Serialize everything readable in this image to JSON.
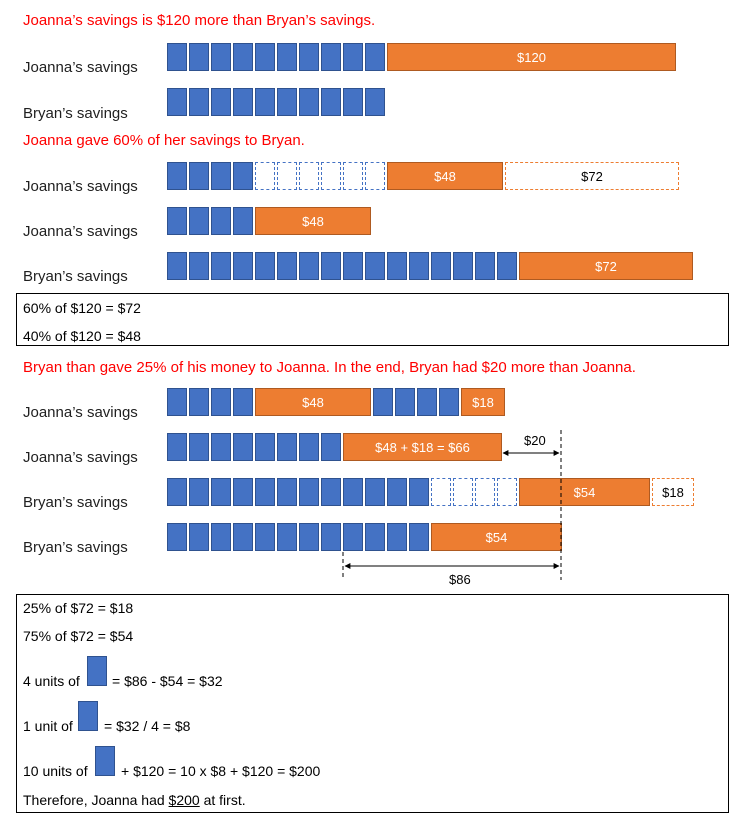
{
  "colors": {
    "unit": "#4472c4",
    "orange": "#ed7d31",
    "heading": "#ff0000"
  },
  "s1": {
    "heading": "Joanna’s savings is $120 more than Bryan’s savings.",
    "row_joanna": "Joanna’s savings",
    "row_bryan": "Bryan’s savings",
    "extra_value": "$120"
  },
  "s2": {
    "heading": "Joanna gave 60% of her savings to Bryan.",
    "row1_label": "Joanna’s savings",
    "row1_given": "$48",
    "row1_dashed": "$72",
    "row2_label": "Joanna’s savings",
    "row2_kept": "$48",
    "row3_label": "Bryan’s savings",
    "row3_received": "$72",
    "box_line1": "60% of $120 = $72",
    "box_line2": "40% of $120 = $48"
  },
  "s3": {
    "heading": "Bryan than gave 25% of his money to Joanna. In the end, Bryan had $20 more than Joanna.",
    "row1_label": "Joanna’s savings",
    "row1_a": "$48",
    "row1_b": "$18",
    "row2_label": "Joanna’s savings",
    "row2_sum": "$48 + $18 = $66",
    "diff_20": "$20",
    "row3_label": "Bryan’s savings",
    "row3_kept": "$54",
    "row3_given": "$18",
    "row4_label": "Bryan’s savings",
    "row4_value": "$54",
    "diff_86": "$86"
  },
  "solution": {
    "line1": "25% of $72 = $18",
    "line2": "75% of $72 = $54",
    "line3_pre": "4 units of",
    "line3_post": "= $86 - $54 = $32",
    "line4_pre": "1 unit of",
    "line4_post": "= $32 / 4 = $8",
    "line5_pre": "10 units of",
    "line5_post": "+ $120 = 10 x $8 + $120 = $200",
    "line6_pre": "Therefore, Joanna had",
    "line6_answer": "$200",
    "line6_post": "at first."
  }
}
